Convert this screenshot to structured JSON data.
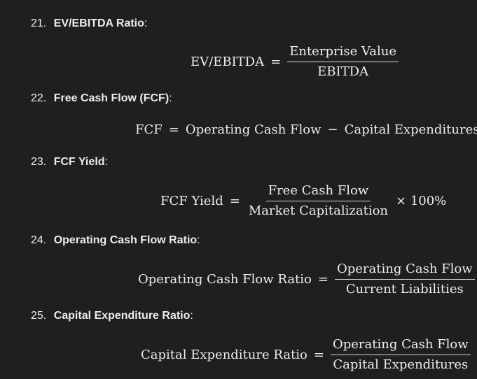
{
  "items": [
    {
      "number": "21.",
      "title": "EV/EBITDA Ratio",
      "suffix": ":"
    },
    {
      "number": "22.",
      "title": "Free Cash Flow (FCF)",
      "suffix": ":"
    },
    {
      "number": "23.",
      "title": "FCF Yield",
      "suffix": ":"
    },
    {
      "number": "24.",
      "title": "Operating Cash Flow Ratio",
      "suffix": ":"
    },
    {
      "number": "25.",
      "title": "Capital Expenditure Ratio",
      "suffix": ":"
    }
  ],
  "formulas": {
    "ev_ebitda": {
      "lhs": "EV/EBITDA",
      "eq": "=",
      "numerator": "Enterprise Value",
      "denominator": "EBITDA"
    },
    "fcf": {
      "lhs": "FCF",
      "eq": "=",
      "term1": "Operating Cash Flow",
      "op": "−",
      "term2": "Capital Expenditures"
    },
    "fcf_yield": {
      "lhs": "FCF Yield",
      "eq": "=",
      "numerator": "Free Cash Flow",
      "denominator": "Market Capitalization",
      "times": "× 100%"
    },
    "ocf_ratio": {
      "lhs": "Operating Cash Flow Ratio",
      "eq": "=",
      "numerator": "Operating Cash Flow",
      "denominator": "Current Liabilities"
    },
    "capex_ratio": {
      "lhs": "Capital Expenditure Ratio",
      "eq": "=",
      "numerator": "Operating Cash Flow",
      "denominator": "Capital Expenditures"
    }
  }
}
